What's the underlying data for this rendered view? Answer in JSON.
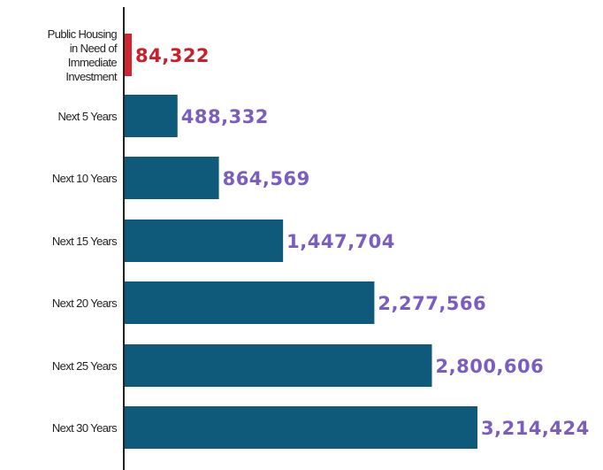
{
  "chart_data": {
    "type": "bar",
    "orientation": "horizontal",
    "title": "",
    "xlabel": "",
    "ylabel": "",
    "categories": [
      [
        "Public Housing",
        "in Need of",
        "Immediate",
        "Investment"
      ],
      [
        "Next 5 Years"
      ],
      [
        "Next 10 Years"
      ],
      [
        "Next 15 Years"
      ],
      [
        "Next 20 Years"
      ],
      [
        "Next 25 Years"
      ],
      [
        "Next 30 Years"
      ]
    ],
    "values": [
      84322,
      488332,
      864569,
      1447704,
      2277566,
      2800606,
      3214424
    ],
    "value_labels": [
      "84,322",
      "488,332",
      "864,569",
      "1,447,704",
      "2,277,566",
      "2,800,606",
      "3,214,424"
    ],
    "xlim": [
      0,
      3300000
    ],
    "grid": false,
    "legend": "none",
    "colors": {
      "highlight_bar": "#d0262f",
      "highlight_label": "#c8202a",
      "bar": "#0f5a7a",
      "value_label": "#7b5cc0",
      "axis": "#222222",
      "category_text": "#222222"
    }
  }
}
